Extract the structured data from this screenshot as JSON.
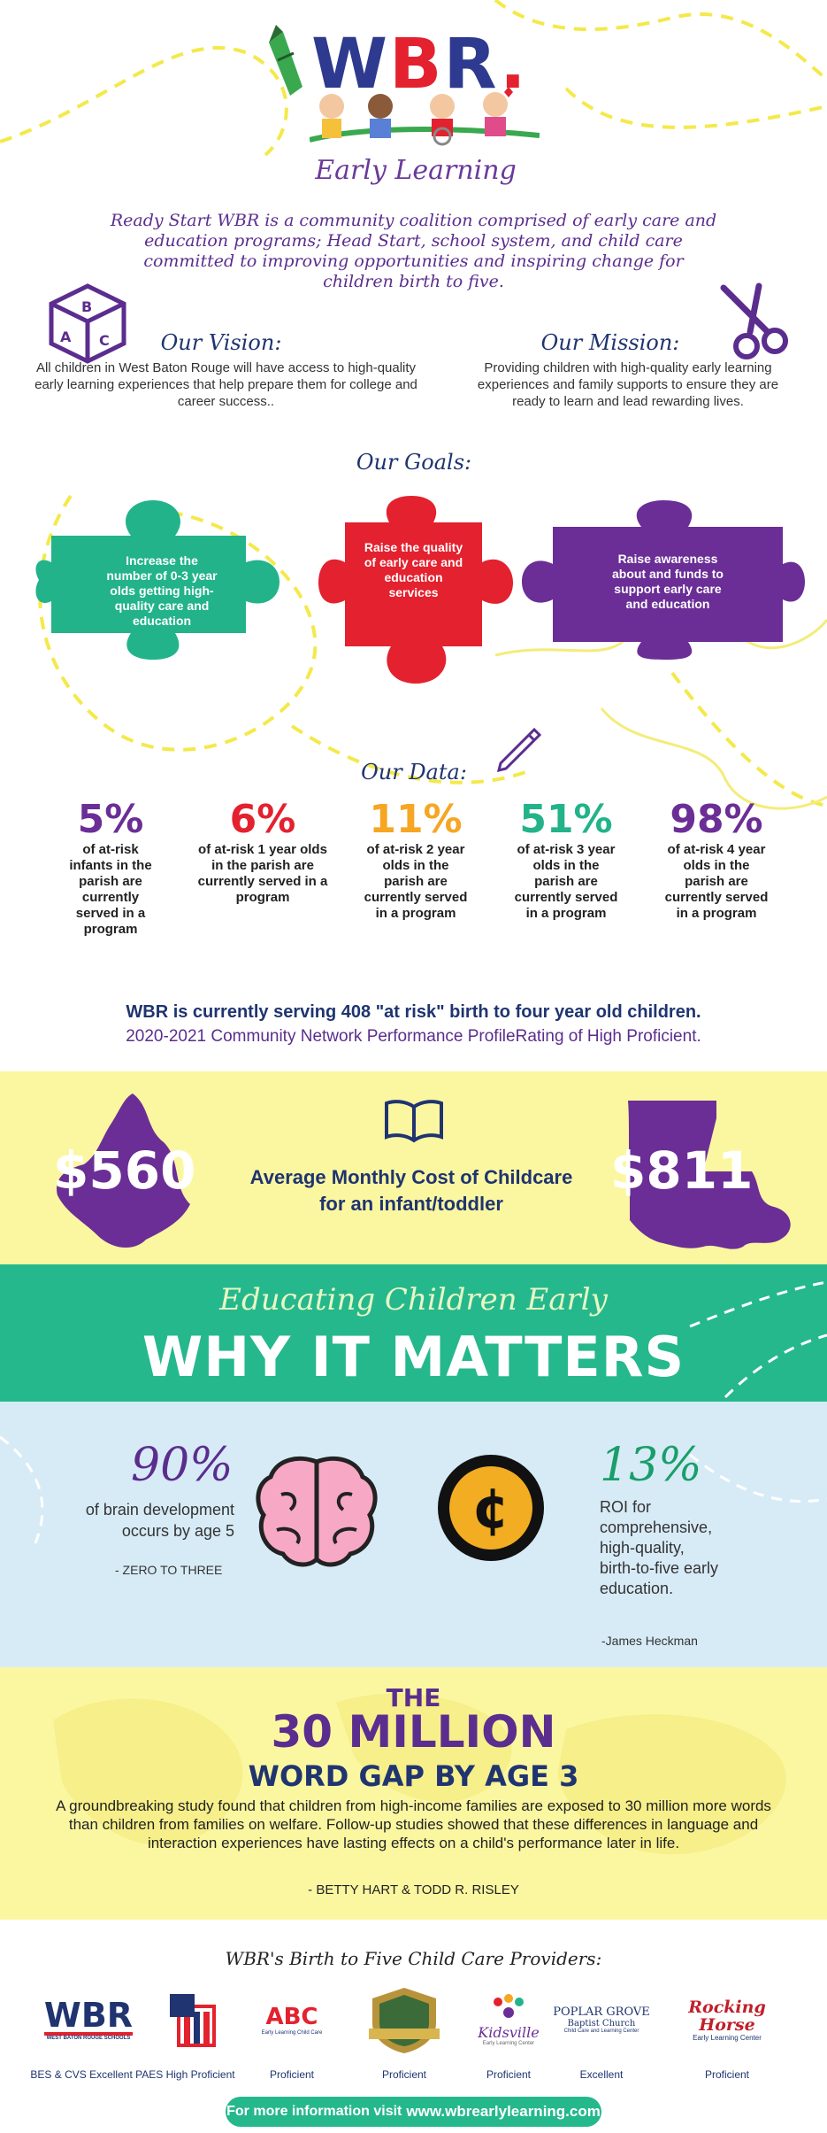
{
  "logo": {
    "letters": [
      "W",
      "B",
      "R",
      "."
    ],
    "subtitle": "Early Learning"
  },
  "intro": "Ready Start WBR is a community coalition comprised of early care and education programs; Head Start, school system, and child care committed to improving opportunities and inspiring change for children birth to five.",
  "vision": {
    "title": "Our Vision:",
    "text": "All children in West Baton Rouge will have access to high-quality early learning experiences that help prepare them for college and career success.."
  },
  "mission": {
    "title": "Our Mission:",
    "text": "Providing children with high-quality early learning experiences and family supports to ensure they are ready to learn and lead rewarding lives."
  },
  "goals": {
    "title": "Our Goals:",
    "items": [
      {
        "text": "Increase the number of 0-3 year olds getting high-quality care and education",
        "color": "#22b38a"
      },
      {
        "text": "Raise the quality of early care and education services",
        "color": "#e4212e"
      },
      {
        "text": "Raise awareness about and funds to support early care and education",
        "color": "#6a2e96"
      }
    ]
  },
  "data_section": {
    "title": "Our Data:",
    "items": [
      {
        "pct": "5%",
        "desc": "of at-risk infants in the parish are currently served in a program",
        "color": "#6a2e96"
      },
      {
        "pct": "6%",
        "desc": "of at-risk 1 year olds in the parish are currently served in a program",
        "color": "#e4212e"
      },
      {
        "pct": "11%",
        "desc": "of at-risk 2 year olds in the parish are currently served in a program",
        "color": "#f6a623"
      },
      {
        "pct": "51%",
        "desc": "of at-risk 3 year olds in the parish are currently served in a program",
        "color": "#22b38a"
      },
      {
        "pct": "98%",
        "desc": "of at-risk 4 year olds in the parish are currently served in a program",
        "color": "#6a2e96"
      }
    ],
    "serving": "WBR is currently serving 408 \"at risk\" birth to four year old children.",
    "profile": "2020-2021 Community Network Performance ProfileRating of High Proficient."
  },
  "cost": {
    "parish_cost": "$560",
    "state_cost": "$811",
    "label_line1": "Average Monthly Cost of Childcare",
    "label_line2": "for an infant/toddler"
  },
  "matters": {
    "subtitle": "Educating Children Early",
    "title": "WHY IT MATTERS"
  },
  "brain": {
    "pct": "90%",
    "text_line1": "of brain development",
    "text_line2": "occurs by age 5",
    "source": "- ZERO TO THREE"
  },
  "roi": {
    "pct": "13%",
    "lines": [
      "ROI for",
      "comprehensive,",
      "high-quality,",
      "birth-to-five early",
      "education."
    ],
    "source": "-James Heckman"
  },
  "word_gap": {
    "the": "THE",
    "million": "30 MILLION",
    "subtitle": "WORD GAP BY AGE 3",
    "body": "A groundbreaking study found that children from high-income families are exposed to 30 million more words than children from families on welfare. Follow-up studies showed that these differences in language and interaction experiences have lasting effects on a child's performance later in life.",
    "source": "- BETTY HART & TODD R. RISLEY"
  },
  "providers": {
    "title": "WBR's Birth to Five Child Care Providers:",
    "items": [
      {
        "logo_text": "WBR",
        "logo_sub": "WEST BATON ROUGE SCHOOLS",
        "rating": "BES & CVS Excellent PAES High Proficient"
      },
      {
        "logo_text": "Head Start",
        "logo_sub": "",
        "rating": ""
      },
      {
        "logo_text": "ABC",
        "logo_sub": "Early Learning Child Care",
        "rating": "Proficient"
      },
      {
        "logo_text": "",
        "logo_sub": "",
        "rating": "Proficient"
      },
      {
        "logo_text": "Kidsville",
        "logo_sub": "Early Learning Center",
        "rating": "Proficient"
      },
      {
        "logo_text": "POPLAR GROVE",
        "logo_sub": "Baptist Church",
        "logo_sub2": "Child Care and Learning Center",
        "rating": "Excellent"
      },
      {
        "logo_text": "Rocking Horse",
        "logo_sub": "Early Learning Center",
        "rating": "Proficient"
      }
    ]
  },
  "footer": {
    "prefix": "For more information visit",
    "url": "www.wbrearlylearning.com"
  },
  "colors": {
    "purple": "#5b2d8e",
    "navy": "#1f3470",
    "green": "#22b38a",
    "red": "#e4212e",
    "orange": "#f6a623",
    "yellow_bg": "#fbf7a1",
    "blue_bg": "#d7ebf7"
  }
}
